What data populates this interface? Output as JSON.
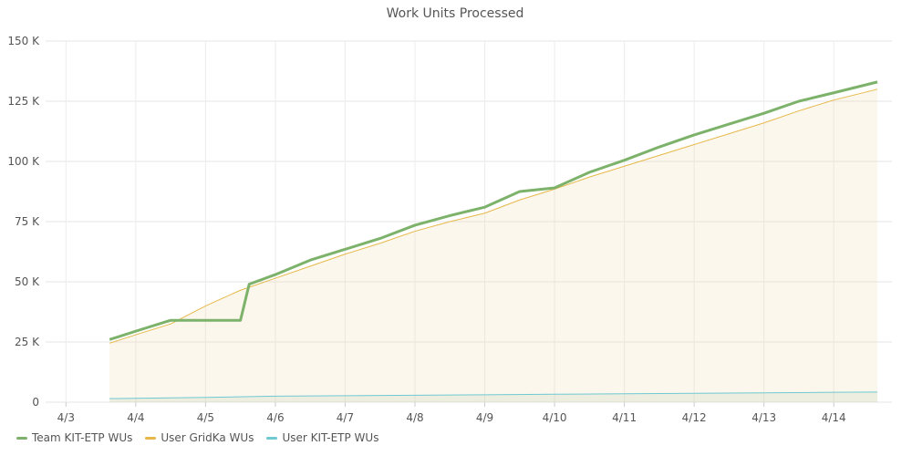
{
  "chart_data": {
    "type": "line",
    "title": "Work Units Processed",
    "xlabel": "",
    "ylabel": "",
    "x_ticks": [
      "4/3",
      "4/4",
      "4/5",
      "4/6",
      "4/7",
      "4/8",
      "4/9",
      "4/10",
      "4/11",
      "4/12",
      "4/13",
      "4/14"
    ],
    "y_ticks": [
      "0",
      "25 K",
      "50 K",
      "75 K",
      "100 K",
      "125 K",
      "150 K"
    ],
    "ylim": [
      0,
      150000
    ],
    "grid": true,
    "legend_position": "bottom-left",
    "series": [
      {
        "name": "Team KIT-ETP WUs",
        "color": "#7db26b",
        "points": [
          [
            "2023-04-03T15:00",
            26000
          ],
          [
            "2023-04-04T00:00",
            29500
          ],
          [
            "2023-04-04T12:00",
            34000
          ],
          [
            "2023-04-05T00:00",
            34000
          ],
          [
            "2023-04-05T12:00",
            34000
          ],
          [
            "2023-04-05T15:00",
            49000
          ],
          [
            "2023-04-06T00:00",
            53000
          ],
          [
            "2023-04-06T12:00",
            59000
          ],
          [
            "2023-04-07T00:00",
            63500
          ],
          [
            "2023-04-07T12:00",
            68000
          ],
          [
            "2023-04-08T00:00",
            73500
          ],
          [
            "2023-04-08T12:00",
            77500
          ],
          [
            "2023-04-09T00:00",
            81000
          ],
          [
            "2023-04-09T12:00",
            87500
          ],
          [
            "2023-04-10T00:00",
            89000
          ],
          [
            "2023-04-10T12:00",
            95500
          ],
          [
            "2023-04-11T00:00",
            100500
          ],
          [
            "2023-04-11T12:00",
            106000
          ],
          [
            "2023-04-12T00:00",
            111000
          ],
          [
            "2023-04-12T12:00",
            115500
          ],
          [
            "2023-04-13T00:00",
            120000
          ],
          [
            "2023-04-13T12:00",
            125000
          ],
          [
            "2023-04-14T00:00",
            128500
          ],
          [
            "2023-04-14T15:00",
            133000
          ]
        ]
      },
      {
        "name": "User GridKa WUs",
        "color": "#e6b84a",
        "points": [
          [
            "2023-04-03T15:00",
            24500
          ],
          [
            "2023-04-04T00:00",
            28000
          ],
          [
            "2023-04-04T12:00",
            32500
          ],
          [
            "2023-04-05T00:00",
            40000
          ],
          [
            "2023-04-05T12:00",
            46500
          ],
          [
            "2023-04-06T00:00",
            51500
          ],
          [
            "2023-04-06T12:00",
            56500
          ],
          [
            "2023-04-07T00:00",
            61500
          ],
          [
            "2023-04-07T12:00",
            66000
          ],
          [
            "2023-04-08T00:00",
            71000
          ],
          [
            "2023-04-08T12:00",
            75000
          ],
          [
            "2023-04-09T00:00",
            78500
          ],
          [
            "2023-04-09T12:00",
            84000
          ],
          [
            "2023-04-10T00:00",
            88500
          ],
          [
            "2023-04-10T12:00",
            93500
          ],
          [
            "2023-04-11T00:00",
            98000
          ],
          [
            "2023-04-11T12:00",
            102500
          ],
          [
            "2023-04-12T00:00",
            107000
          ],
          [
            "2023-04-12T12:00",
            111500
          ],
          [
            "2023-04-13T00:00",
            116000
          ],
          [
            "2023-04-13T12:00",
            121000
          ],
          [
            "2023-04-14T00:00",
            125500
          ],
          [
            "2023-04-14T15:00",
            130000
          ]
        ]
      },
      {
        "name": "User KIT-ETP WUs",
        "color": "#6fc9d3",
        "points": [
          [
            "2023-04-03T15:00",
            1500
          ],
          [
            "2023-04-05T00:00",
            2000
          ],
          [
            "2023-04-06T00:00",
            2500
          ],
          [
            "2023-04-07T00:00",
            2700
          ],
          [
            "2023-04-08T00:00",
            2900
          ],
          [
            "2023-04-09T00:00",
            3100
          ],
          [
            "2023-04-10T00:00",
            3300
          ],
          [
            "2023-04-11T00:00",
            3500
          ],
          [
            "2023-04-12T00:00",
            3700
          ],
          [
            "2023-04-13T00:00",
            3900
          ],
          [
            "2023-04-14T00:00",
            4100
          ],
          [
            "2023-04-14T15:00",
            4200
          ]
        ]
      }
    ]
  }
}
